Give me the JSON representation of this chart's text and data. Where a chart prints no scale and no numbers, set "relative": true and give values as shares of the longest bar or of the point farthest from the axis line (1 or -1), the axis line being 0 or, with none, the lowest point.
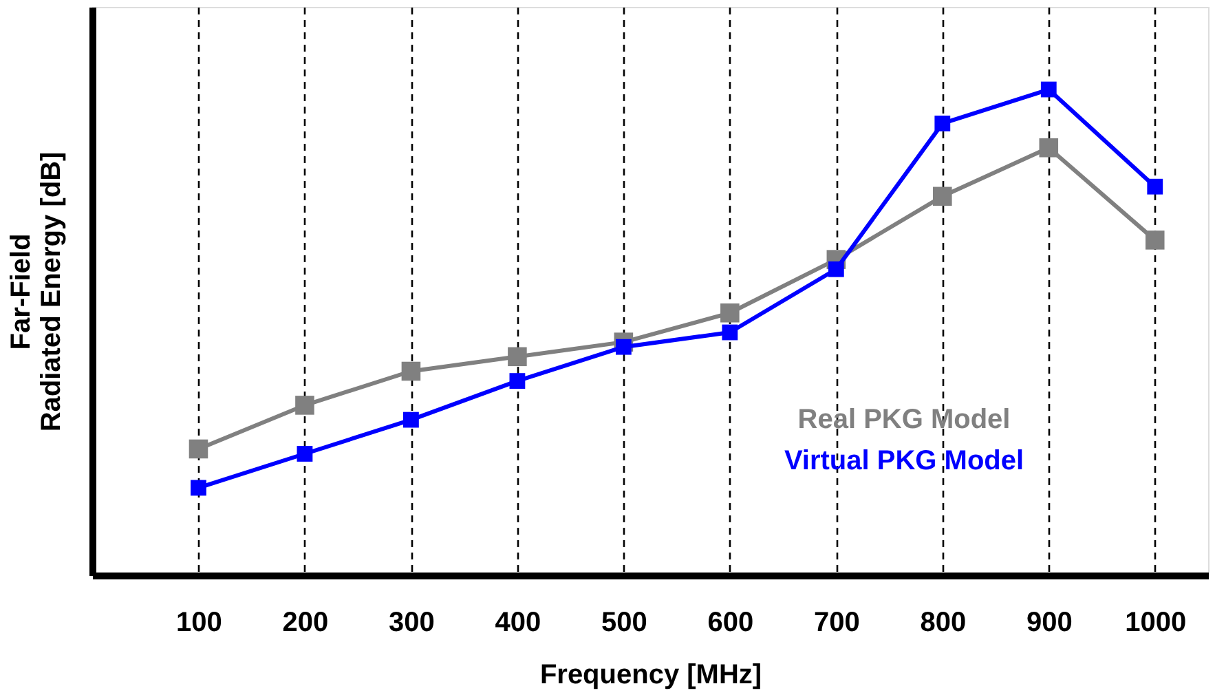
{
  "chart_data": {
    "type": "line",
    "relative": true,
    "xlabel": "Frequency [MHz]",
    "ylabel": "Far-Field\nRadiated Energy [dB]",
    "categories": [
      "100",
      "200",
      "300",
      "400",
      "500",
      "600",
      "700",
      "800",
      "900",
      "1000"
    ],
    "series": [
      {
        "name": "Real PKG Model",
        "color": "#808080",
        "values": [
          0.26,
          0.35,
          0.42,
          0.45,
          0.48,
          0.54,
          0.65,
          0.78,
          0.88,
          0.69
        ]
      },
      {
        "name": "Virtual PKG Model",
        "color": "#0000ff",
        "values": [
          0.18,
          0.25,
          0.32,
          0.4,
          0.47,
          0.5,
          0.63,
          0.93,
          1.0,
          0.8
        ]
      }
    ],
    "grid": "x",
    "marker": "square",
    "line_style": "solid",
    "legend": "bottom right"
  }
}
